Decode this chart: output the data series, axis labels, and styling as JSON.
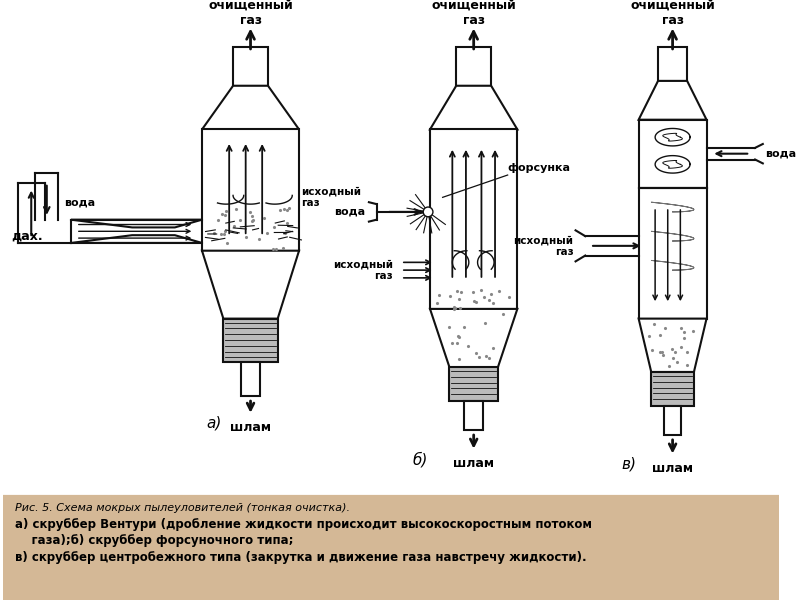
{
  "bg_white": "#ffffff",
  "bg_caption": "#d4b896",
  "line_color": "#111111",
  "fill_sump": "#bbbbbb",
  "fill_dots": "#888888",
  "caption_line1": "Рис. 5. Схема мокрых пылеуловителей (тонкая очистка).",
  "caption_line2": "а) скруббер Вентури (дробление жидкости происходит высокоскоростным потоком",
  "caption_line3": "    газа);б) скруббер форсуночного типа;",
  "caption_line4": "в) скруббер центробежного типа (закрутка и движение газа навстречу жидкости).",
  "label_a": "а)",
  "label_b": "б)",
  "label_v": "в)",
  "text_clean": "очищенный\nгаз",
  "text_init": "исходный\nгаз",
  "text_water": "вода",
  "text_shlam": "шлам",
  "text_forsunka": "форсунка",
  "text_dah": "дах."
}
